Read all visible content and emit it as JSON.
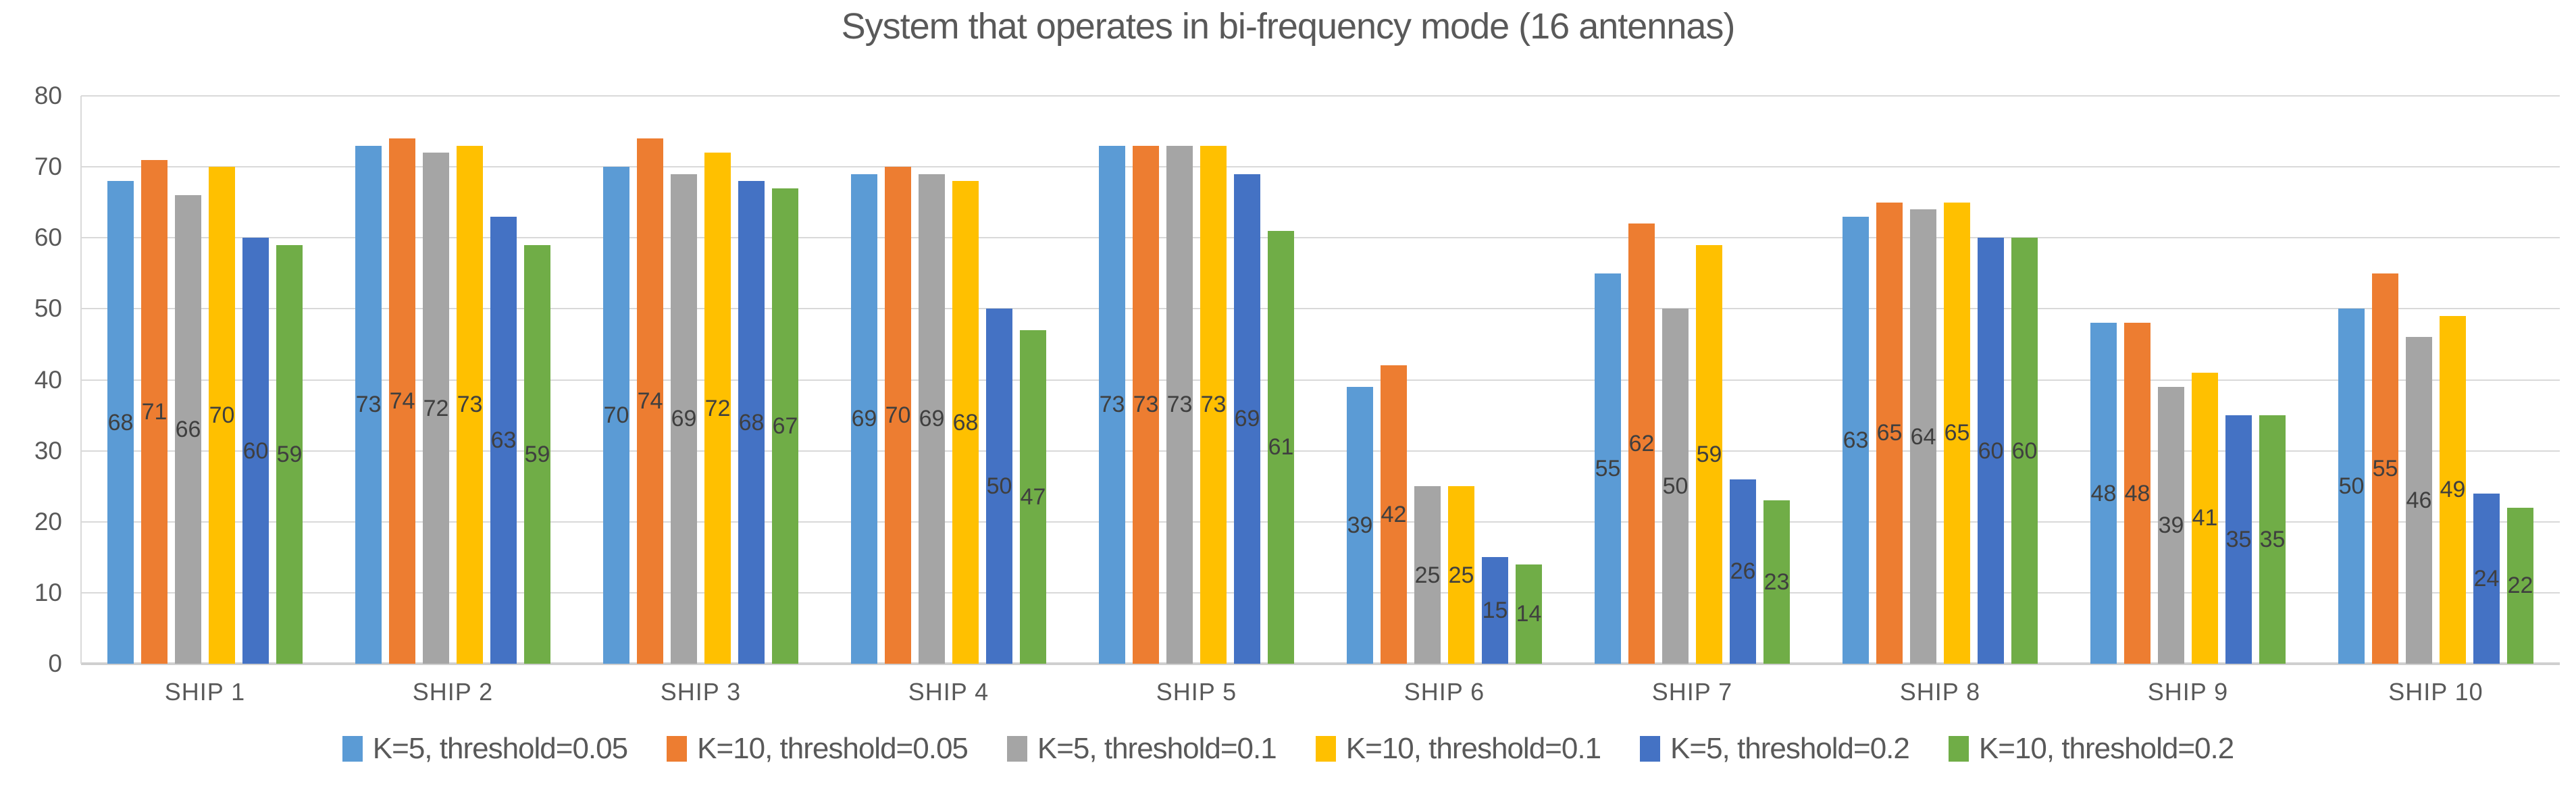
{
  "chart_data": {
    "type": "bar",
    "title": "System that operates in bi-frequency mode (16 antennas)",
    "categories": [
      "SHIP 1",
      "SHIP 2",
      "SHIP 3",
      "SHIP 4",
      "SHIP 5",
      "SHIP 6",
      "SHIP 7",
      "SHIP 8",
      "SHIP 9",
      "SHIP 10"
    ],
    "series": [
      {
        "name": "K=5, threshold=0.05",
        "color": "#5b9bd5",
        "values": [
          68,
          73,
          70,
          69,
          73,
          39,
          55,
          63,
          48,
          50
        ]
      },
      {
        "name": "K=10, threshold=0.05",
        "color": "#ed7d31",
        "values": [
          71,
          74,
          74,
          70,
          73,
          42,
          62,
          65,
          48,
          55
        ]
      },
      {
        "name": "K=5, threshold=0.1",
        "color": "#a5a5a5",
        "values": [
          66,
          72,
          69,
          69,
          73,
          25,
          50,
          64,
          39,
          46
        ]
      },
      {
        "name": "K=10, threshold=0.1",
        "color": "#ffc000",
        "values": [
          70,
          73,
          72,
          68,
          73,
          25,
          59,
          65,
          41,
          49
        ]
      },
      {
        "name": "K=5, threshold=0.2",
        "color": "#4472c4",
        "values": [
          60,
          63,
          68,
          50,
          69,
          15,
          26,
          60,
          35,
          24
        ]
      },
      {
        "name": "K=10, threshold=0.2",
        "color": "#70ad47",
        "values": [
          59,
          59,
          67,
          47,
          61,
          14,
          23,
          60,
          35,
          22
        ]
      }
    ],
    "ylim": [
      0,
      80
    ],
    "yticks": [
      0,
      10,
      20,
      30,
      40,
      50,
      60,
      70,
      80
    ],
    "grid": "horizontal-only",
    "legend_position": "bottom-center",
    "data_labels": "inside-center",
    "text_color": "#595959",
    "gridline_color": "#d9d9d9",
    "background_color": "#ffffff"
  }
}
